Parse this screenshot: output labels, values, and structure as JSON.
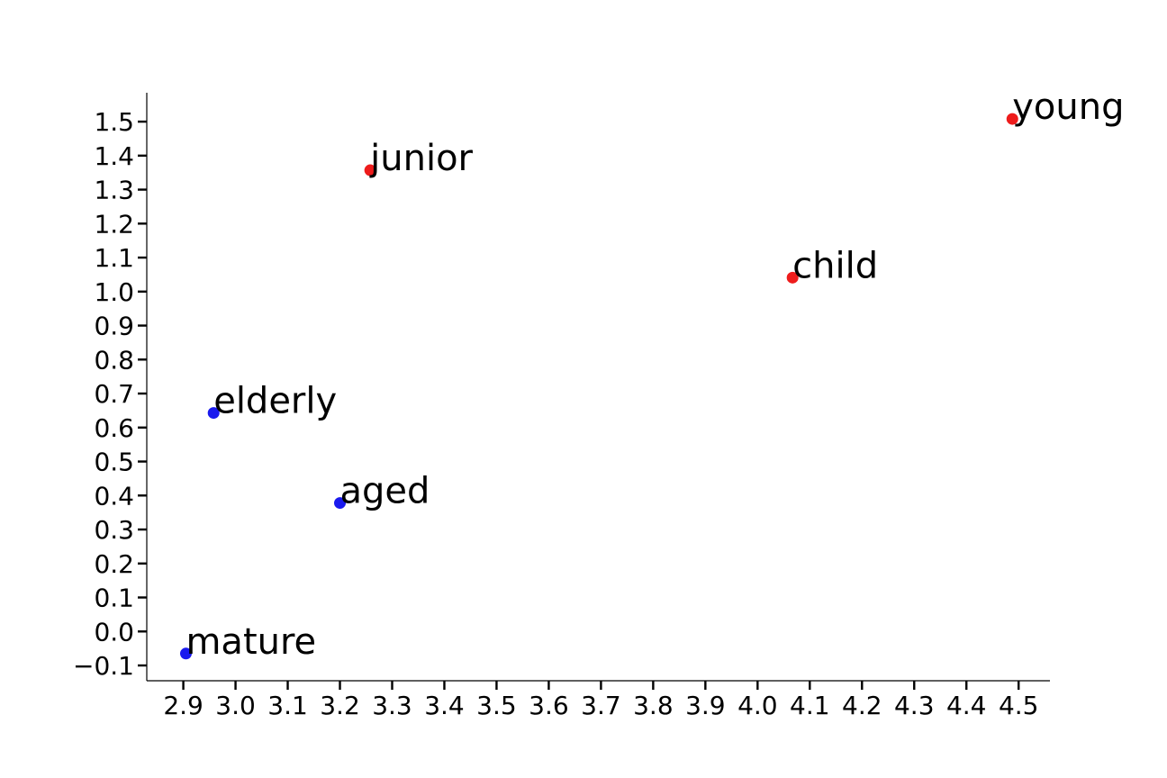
{
  "chart_data": {
    "type": "scatter",
    "title": "",
    "xlabel": "",
    "ylabel": "",
    "xlim": [
      2.83,
      4.56
    ],
    "ylim": [
      -0.145,
      1.585
    ],
    "grid": false,
    "x_ticks": [
      "2.9",
      "3.0",
      "3.1",
      "3.2",
      "3.3",
      "3.4",
      "3.5",
      "3.6",
      "3.7",
      "3.8",
      "3.9",
      "4.0",
      "4.1",
      "4.2",
      "4.3",
      "4.4",
      "4.5"
    ],
    "y_ticks": [
      "−0.1",
      "0.0",
      "0.1",
      "0.2",
      "0.3",
      "0.4",
      "0.5",
      "0.6",
      "0.7",
      "0.8",
      "0.9",
      "1.0",
      "1.1",
      "1.2",
      "1.3",
      "1.4",
      "1.5"
    ],
    "points": [
      {
        "label": "young",
        "x": 4.488,
        "y": 1.508,
        "color": "#ee1c1c"
      },
      {
        "label": "junior",
        "x": 3.258,
        "y": 1.357,
        "color": "#ee1c1c"
      },
      {
        "label": "child",
        "x": 4.067,
        "y": 1.041,
        "color": "#ee1c1c"
      },
      {
        "label": "elderly",
        "x": 2.958,
        "y": 0.643,
        "color": "#1a1aee"
      },
      {
        "label": "aged",
        "x": 3.2,
        "y": 0.378,
        "color": "#1a1aee"
      },
      {
        "label": "mature",
        "x": 2.905,
        "y": -0.065,
        "color": "#1a1aee"
      }
    ]
  }
}
